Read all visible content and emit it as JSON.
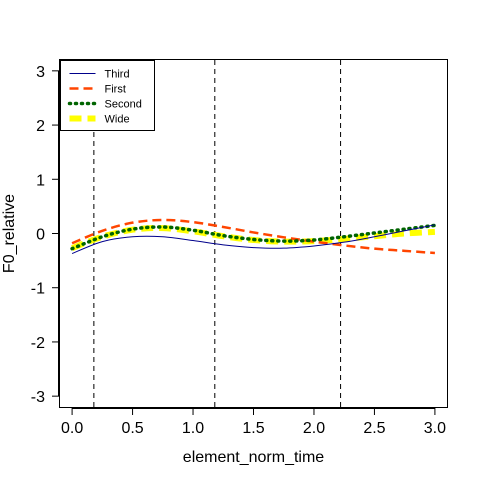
{
  "chart_data": {
    "type": "line",
    "xlabel": "element_norm_time",
    "ylabel": "F0_relative",
    "xlim": [
      -0.1,
      3.1
    ],
    "ylim": [
      -3.2,
      3.2
    ],
    "x_ticks": [
      "0.0",
      "0.5",
      "1.0",
      "1.5",
      "2.0",
      "2.5",
      "3.0"
    ],
    "y_ticks": [
      "-3",
      "-2",
      "-1",
      "0",
      "1",
      "2",
      "3"
    ],
    "grid": false,
    "legend_position": "top-left",
    "vlines": [
      0.18,
      1.18,
      2.22
    ],
    "series": [
      {
        "name": "Third",
        "color": "#00008b",
        "style": "solid",
        "x": [
          0.0,
          0.25,
          0.5,
          0.75,
          1.0,
          1.25,
          1.5,
          1.75,
          2.0,
          2.25,
          2.5,
          2.75,
          3.0
        ],
        "y": [
          -0.37,
          -0.15,
          -0.06,
          -0.06,
          -0.13,
          -0.21,
          -0.26,
          -0.27,
          -0.23,
          -0.16,
          -0.06,
          0.05,
          0.16
        ]
      },
      {
        "name": "First",
        "color": "#ff4500",
        "style": "dashed",
        "x": [
          0.0,
          0.25,
          0.5,
          0.75,
          1.0,
          1.25,
          1.5,
          1.75,
          2.0,
          2.25,
          2.5,
          2.75,
          3.0
        ],
        "y": [
          -0.18,
          0.05,
          0.2,
          0.25,
          0.21,
          0.12,
          0.02,
          -0.07,
          -0.15,
          -0.22,
          -0.28,
          -0.32,
          -0.36
        ]
      },
      {
        "name": "Second",
        "color": "#006400",
        "style": "dotted",
        "x": [
          0.0,
          0.25,
          0.5,
          0.75,
          1.0,
          1.25,
          1.5,
          1.75,
          2.0,
          2.25,
          2.5,
          2.75,
          3.0
        ],
        "y": [
          -0.28,
          -0.06,
          0.08,
          0.12,
          0.06,
          -0.04,
          -0.11,
          -0.14,
          -0.12,
          -0.06,
          0.01,
          0.08,
          0.15
        ]
      },
      {
        "name": "Wide",
        "color": "#ffff00",
        "style": "dashed-thick",
        "x": [
          0.0,
          0.25,
          0.5,
          0.75,
          1.0,
          1.25,
          1.5,
          1.75,
          2.0,
          2.25,
          2.5,
          2.75,
          3.0
        ],
        "y": [
          -0.27,
          -0.06,
          0.07,
          0.1,
          0.04,
          -0.05,
          -0.12,
          -0.15,
          -0.14,
          -0.1,
          -0.05,
          0.0,
          0.03
        ]
      }
    ]
  }
}
